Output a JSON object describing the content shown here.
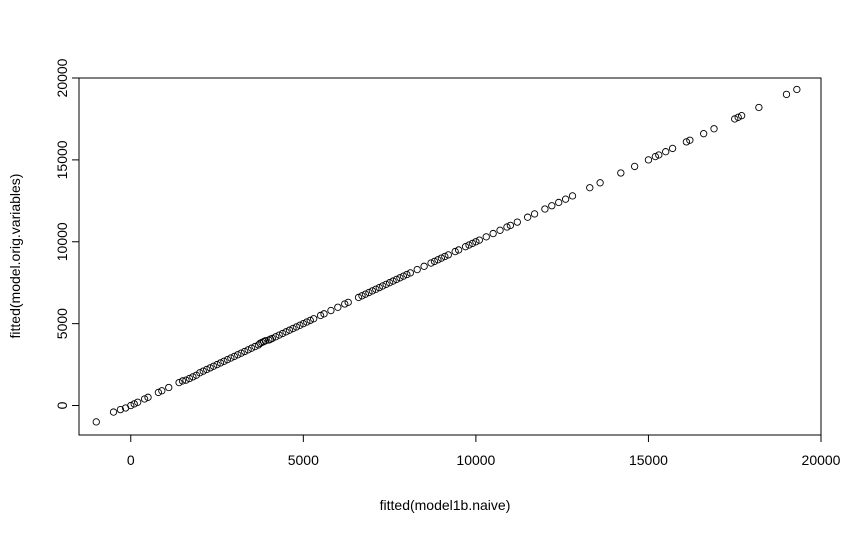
{
  "chart_data": {
    "type": "scatter",
    "xlabel": "fitted(model1b.naive)",
    "ylabel": "fitted(model.orig.variables)",
    "xlim": [
      -1500,
      20000
    ],
    "ylim": [
      -1800,
      20000
    ],
    "xticks": [
      0,
      5000,
      10000,
      15000,
      20000
    ],
    "yticks": [
      0,
      5000,
      10000,
      15000,
      20000
    ],
    "xtick_labels": [
      "0",
      "5000",
      "10000",
      "15000",
      "20000"
    ],
    "ytick_labels": [
      "0",
      "5000",
      "10000",
      "15000",
      "20000"
    ],
    "grid": false,
    "legend": "none",
    "marker": "open-circle",
    "points": [
      [
        -1000,
        -1000
      ],
      [
        -500,
        -400
      ],
      [
        -300,
        -250
      ],
      [
        -150,
        -150
      ],
      [
        0,
        0
      ],
      [
        100,
        100
      ],
      [
        200,
        200
      ],
      [
        400,
        400
      ],
      [
        500,
        500
      ],
      [
        800,
        800
      ],
      [
        900,
        900
      ],
      [
        1100,
        1100
      ],
      [
        1400,
        1400
      ],
      [
        1500,
        1500
      ],
      [
        1600,
        1550
      ],
      [
        1700,
        1650
      ],
      [
        1800,
        1750
      ],
      [
        1900,
        1850
      ],
      [
        2000,
        2000
      ],
      [
        2100,
        2100
      ],
      [
        2200,
        2200
      ],
      [
        2300,
        2300
      ],
      [
        2400,
        2400
      ],
      [
        2500,
        2500
      ],
      [
        2600,
        2600
      ],
      [
        2700,
        2700
      ],
      [
        2800,
        2800
      ],
      [
        2900,
        2900
      ],
      [
        3000,
        3000
      ],
      [
        3100,
        3100
      ],
      [
        3200,
        3200
      ],
      [
        3300,
        3300
      ],
      [
        3400,
        3400
      ],
      [
        3500,
        3500
      ],
      [
        3600,
        3600
      ],
      [
        3700,
        3700
      ],
      [
        3750,
        3800
      ],
      [
        3800,
        3850
      ],
      [
        3850,
        3900
      ],
      [
        3900,
        3950
      ],
      [
        4000,
        4000
      ],
      [
        4050,
        4050
      ],
      [
        4100,
        4100
      ],
      [
        4200,
        4200
      ],
      [
        4300,
        4300
      ],
      [
        4400,
        4400
      ],
      [
        4500,
        4500
      ],
      [
        4600,
        4600
      ],
      [
        4700,
        4700
      ],
      [
        4800,
        4800
      ],
      [
        4900,
        4900
      ],
      [
        5000,
        5000
      ],
      [
        5100,
        5100
      ],
      [
        5200,
        5200
      ],
      [
        5300,
        5300
      ],
      [
        5500,
        5500
      ],
      [
        5600,
        5600
      ],
      [
        5800,
        5800
      ],
      [
        6000,
        6000
      ],
      [
        6200,
        6200
      ],
      [
        6300,
        6300
      ],
      [
        6600,
        6600
      ],
      [
        6700,
        6700
      ],
      [
        6800,
        6800
      ],
      [
        6900,
        6900
      ],
      [
        7000,
        7000
      ],
      [
        7100,
        7100
      ],
      [
        7200,
        7200
      ],
      [
        7300,
        7300
      ],
      [
        7400,
        7400
      ],
      [
        7500,
        7500
      ],
      [
        7600,
        7600
      ],
      [
        7700,
        7700
      ],
      [
        7800,
        7800
      ],
      [
        7900,
        7900
      ],
      [
        8000,
        8000
      ],
      [
        8100,
        8100
      ],
      [
        8300,
        8300
      ],
      [
        8500,
        8500
      ],
      [
        8700,
        8700
      ],
      [
        8800,
        8800
      ],
      [
        8900,
        8900
      ],
      [
        9000,
        9000
      ],
      [
        9100,
        9100
      ],
      [
        9200,
        9200
      ],
      [
        9400,
        9400
      ],
      [
        9500,
        9500
      ],
      [
        9700,
        9700
      ],
      [
        9800,
        9800
      ],
      [
        9900,
        9900
      ],
      [
        10000,
        10000
      ],
      [
        10100,
        10100
      ],
      [
        10300,
        10300
      ],
      [
        10500,
        10500
      ],
      [
        10700,
        10700
      ],
      [
        10900,
        10900
      ],
      [
        11000,
        11000
      ],
      [
        11200,
        11200
      ],
      [
        11500,
        11500
      ],
      [
        11700,
        11700
      ],
      [
        12000,
        12000
      ],
      [
        12200,
        12200
      ],
      [
        12400,
        12400
      ],
      [
        12600,
        12600
      ],
      [
        12800,
        12800
      ],
      [
        13300,
        13300
      ],
      [
        13600,
        13600
      ],
      [
        14200,
        14200
      ],
      [
        14600,
        14600
      ],
      [
        15000,
        15000
      ],
      [
        15200,
        15200
      ],
      [
        15300,
        15300
      ],
      [
        15500,
        15500
      ],
      [
        15700,
        15700
      ],
      [
        16100,
        16100
      ],
      [
        16200,
        16200
      ],
      [
        16600,
        16600
      ],
      [
        16900,
        16900
      ],
      [
        17500,
        17500
      ],
      [
        17600,
        17600
      ],
      [
        17700,
        17700
      ],
      [
        18200,
        18200
      ],
      [
        19000,
        19000
      ],
      [
        19300,
        19300
      ]
    ]
  }
}
